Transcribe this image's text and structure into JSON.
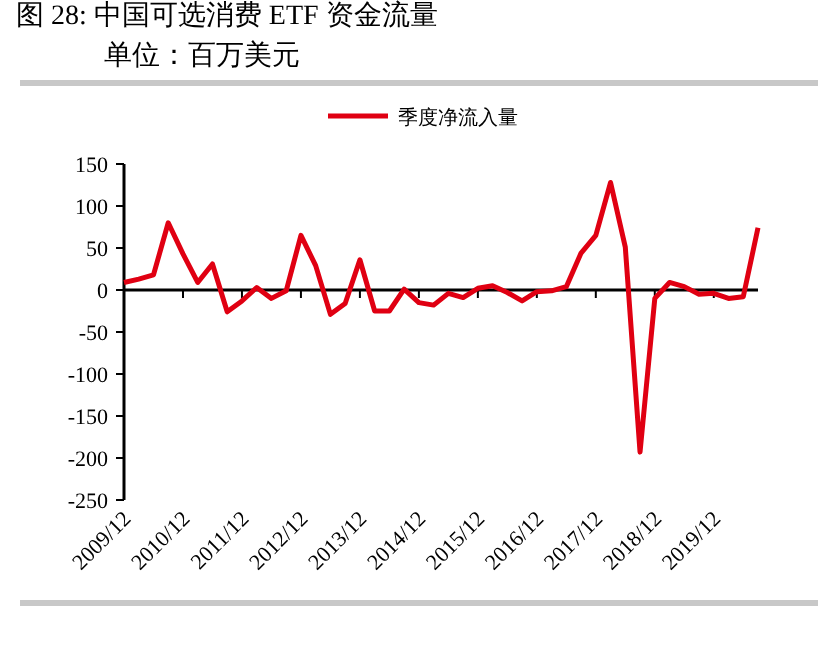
{
  "chart_data": {
    "type": "line",
    "title": "图 28:   中国可选消费 ETF 资金流量",
    "subtitle": "单位：百万美元",
    "x": [
      "2009-12",
      "2010-03",
      "2010-06",
      "2010-09",
      "2010-12",
      "2011-03",
      "2011-06",
      "2011-09",
      "2011-12",
      "2012-03",
      "2012-06",
      "2012-09",
      "2012-12",
      "2013-03",
      "2013-06",
      "2013-09",
      "2013-12",
      "2014-03",
      "2014-06",
      "2014-09",
      "2014-12",
      "2015-03",
      "2015-06",
      "2015-09",
      "2015-12",
      "2016-03",
      "2016-06",
      "2016-09",
      "2016-12",
      "2017-03",
      "2017-06",
      "2017-09",
      "2017-12",
      "2018-03",
      "2018-06",
      "2018-09",
      "2018-12",
      "2019-03",
      "2019-06",
      "2019-09",
      "2019-12",
      "2020-03",
      "2020-06",
      "2020-09"
    ],
    "series": [
      {
        "name": "季度净流入量",
        "color": "#e00012",
        "values": [
          9,
          13,
          18,
          80,
          43,
          9,
          31,
          -26,
          -13,
          3,
          -10,
          -1,
          65,
          29,
          -29,
          -16,
          36,
          -25,
          -25,
          1,
          -15,
          -18,
          -4,
          -9,
          2,
          5,
          -3,
          -13,
          -2,
          -1,
          4,
          44,
          65,
          128,
          51,
          -193,
          -10,
          9,
          4,
          -5,
          -4,
          -10,
          -8,
          74
        ]
      }
    ],
    "xlim": [
      "2009-12",
      "2020-09"
    ],
    "xticks": [
      {
        "value": "2009-12",
        "label": "2009/12"
      },
      {
        "value": "2010-12",
        "label": "2010/12"
      },
      {
        "value": "2011-12",
        "label": "2011/12"
      },
      {
        "value": "2012-12",
        "label": "2012/12"
      },
      {
        "value": "2013-12",
        "label": "2013/12"
      },
      {
        "value": "2014-12",
        "label": "2014/12"
      },
      {
        "value": "2015-12",
        "label": "2015/12"
      },
      {
        "value": "2016-12",
        "label": "2016/12"
      },
      {
        "value": "2017-12",
        "label": "2017/12"
      },
      {
        "value": "2018-12",
        "label": "2018/12"
      },
      {
        "value": "2019-12",
        "label": "2019/12"
      }
    ],
    "ylim": [
      -250,
      150
    ],
    "yticks": [
      -250,
      -200,
      -150,
      -100,
      -50,
      0,
      50,
      100,
      150
    ],
    "legend": "top",
    "marker": "none",
    "line_style": "solid"
  }
}
